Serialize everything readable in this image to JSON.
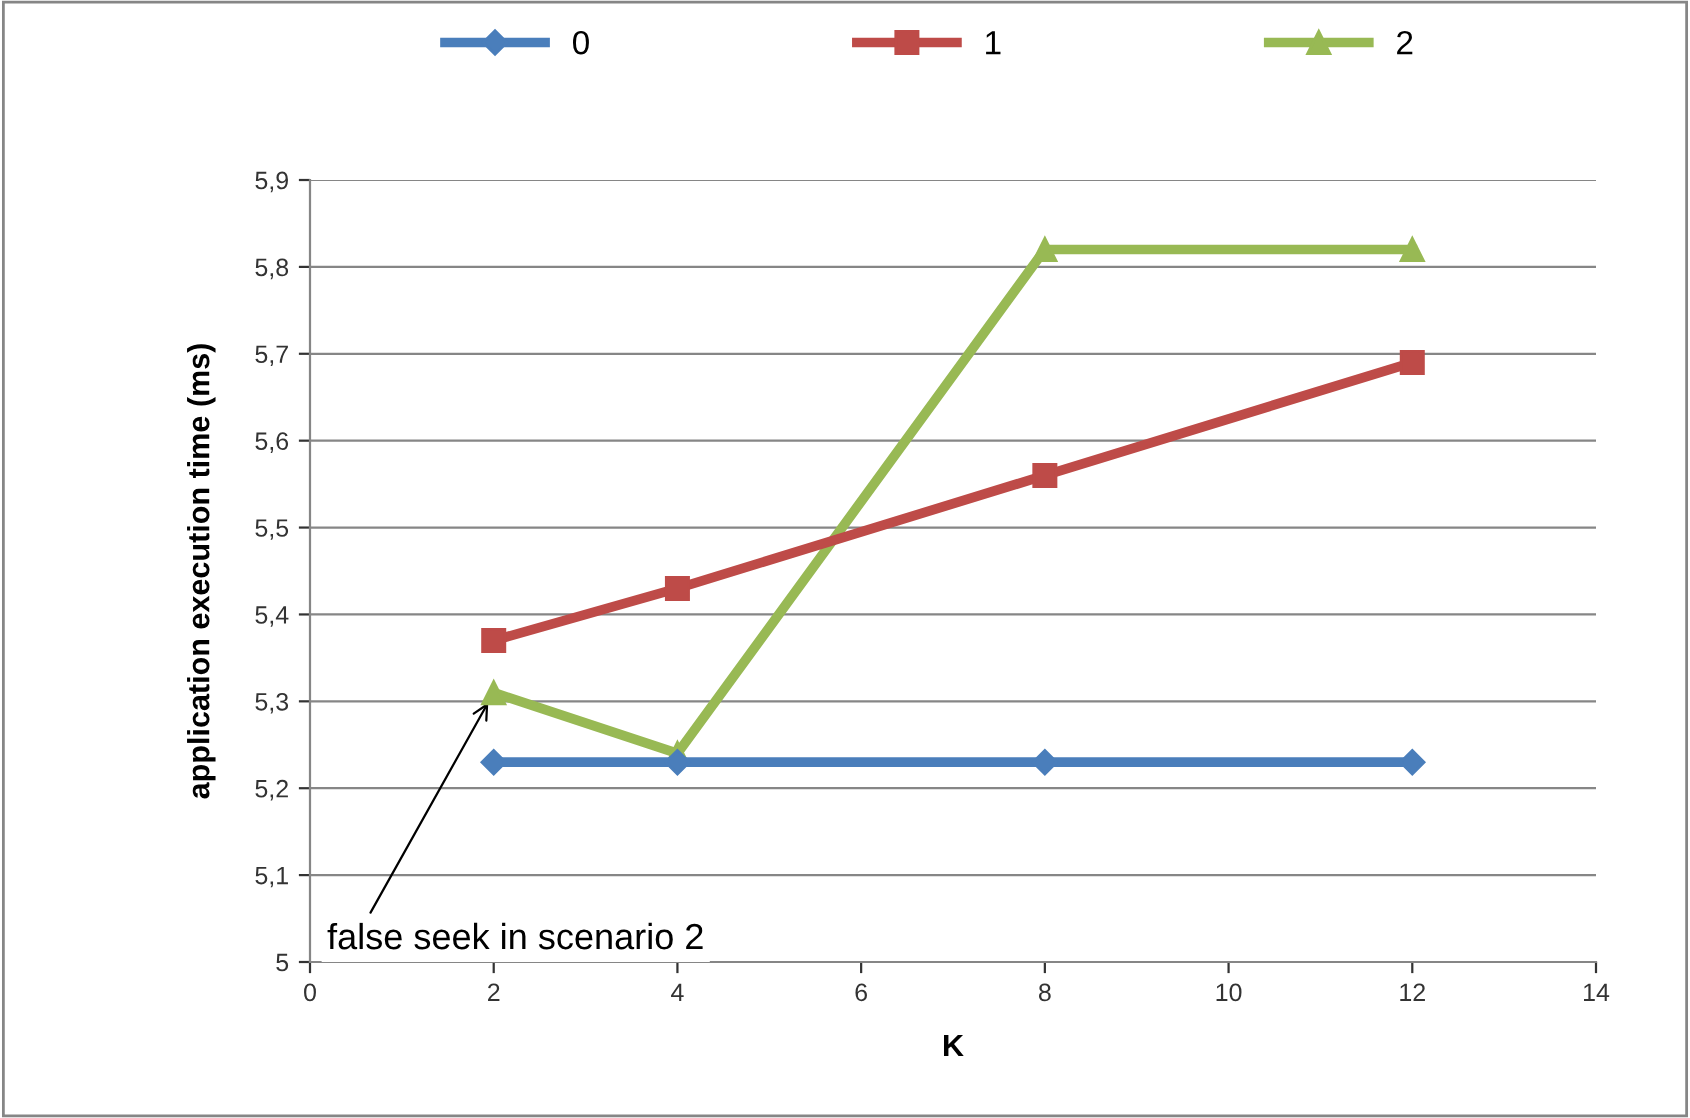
{
  "chart_data": {
    "type": "line",
    "xlabel": "K",
    "ylabel": "application execution time (ms)",
    "xlim": [
      0,
      14
    ],
    "xticks": [
      0,
      2,
      4,
      6,
      8,
      10,
      12,
      14
    ],
    "ylim": [
      5,
      5.9
    ],
    "yticks": [
      {
        "value": 5,
        "label": "5"
      },
      {
        "value": 5.1,
        "label": "5,1"
      },
      {
        "value": 5.2,
        "label": "5,2"
      },
      {
        "value": 5.3,
        "label": "5,3"
      },
      {
        "value": 5.4,
        "label": "5,4"
      },
      {
        "value": 5.5,
        "label": "5,5"
      },
      {
        "value": 5.6,
        "label": "5,6"
      },
      {
        "value": 5.7,
        "label": "5,7"
      },
      {
        "value": 5.8,
        "label": "5,8"
      },
      {
        "value": 5.9,
        "label": "5,9"
      }
    ],
    "grid": "y",
    "legend": "top",
    "x": [
      2,
      4,
      8,
      12
    ],
    "series": [
      {
        "name": "0",
        "color": "#4a7ebb",
        "marker": "diamond",
        "values": [
          5.23,
          5.23,
          5.23,
          5.23
        ]
      },
      {
        "name": "1",
        "color": "#be4b48",
        "marker": "square",
        "values": [
          5.37,
          5.43,
          5.56,
          5.69
        ]
      },
      {
        "name": "2",
        "color": "#98b954",
        "marker": "triangle",
        "values": [
          5.31,
          5.24,
          5.82,
          5.82
        ]
      }
    ],
    "annotations": [
      {
        "text": "false seek in scenario 2",
        "x": 2,
        "y": 5.31
      }
    ]
  }
}
